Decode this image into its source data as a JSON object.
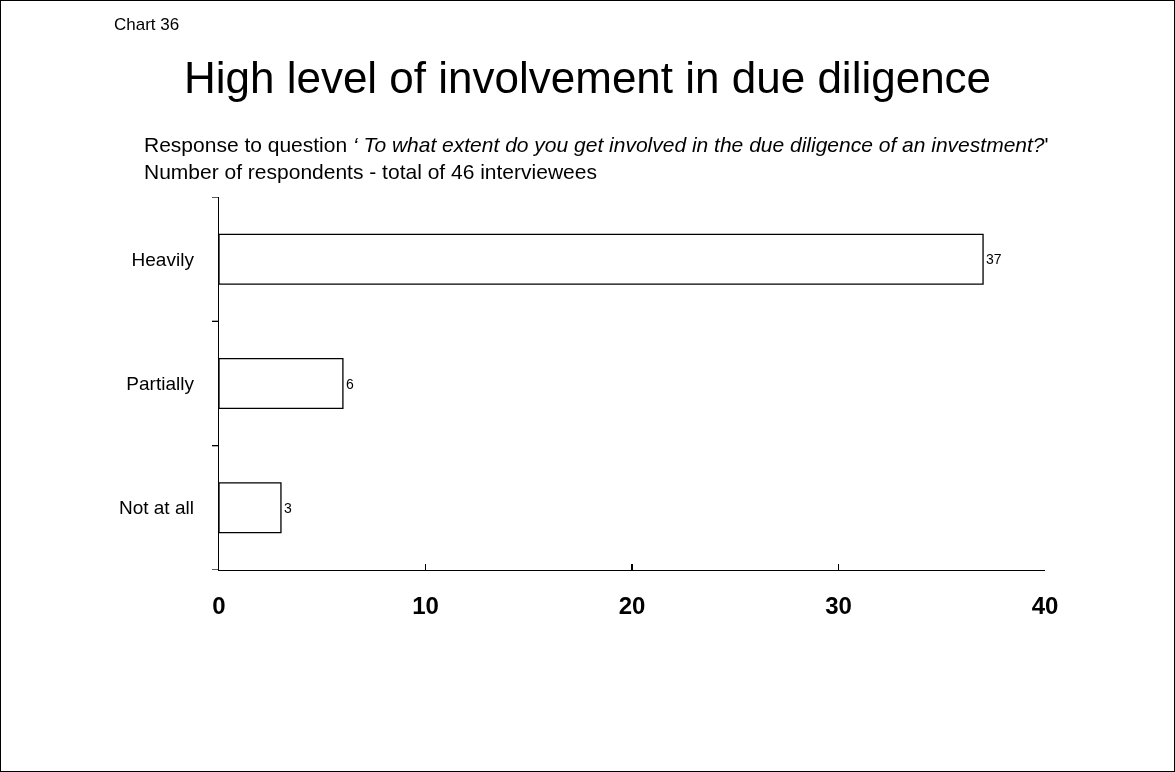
{
  "chart_data": {
    "type": "bar",
    "orientation": "horizontal",
    "title": "High level of involvement in due diligence",
    "subtitle": "Response to question ‘ To what extent do you get involved in the due diligence of an investment?'\nNumber of respondents - total of 46 interviewees",
    "annotations": [
      "Chart 36"
    ],
    "categories": [
      "Heavily",
      "Partially",
      "Not at all"
    ],
    "values": [
      37,
      6,
      3
    ],
    "color": "#ffffff",
    "xlim": [
      0,
      40
    ],
    "xticks": [
      0,
      10,
      20,
      30,
      40
    ],
    "data_labels": true
  }
}
